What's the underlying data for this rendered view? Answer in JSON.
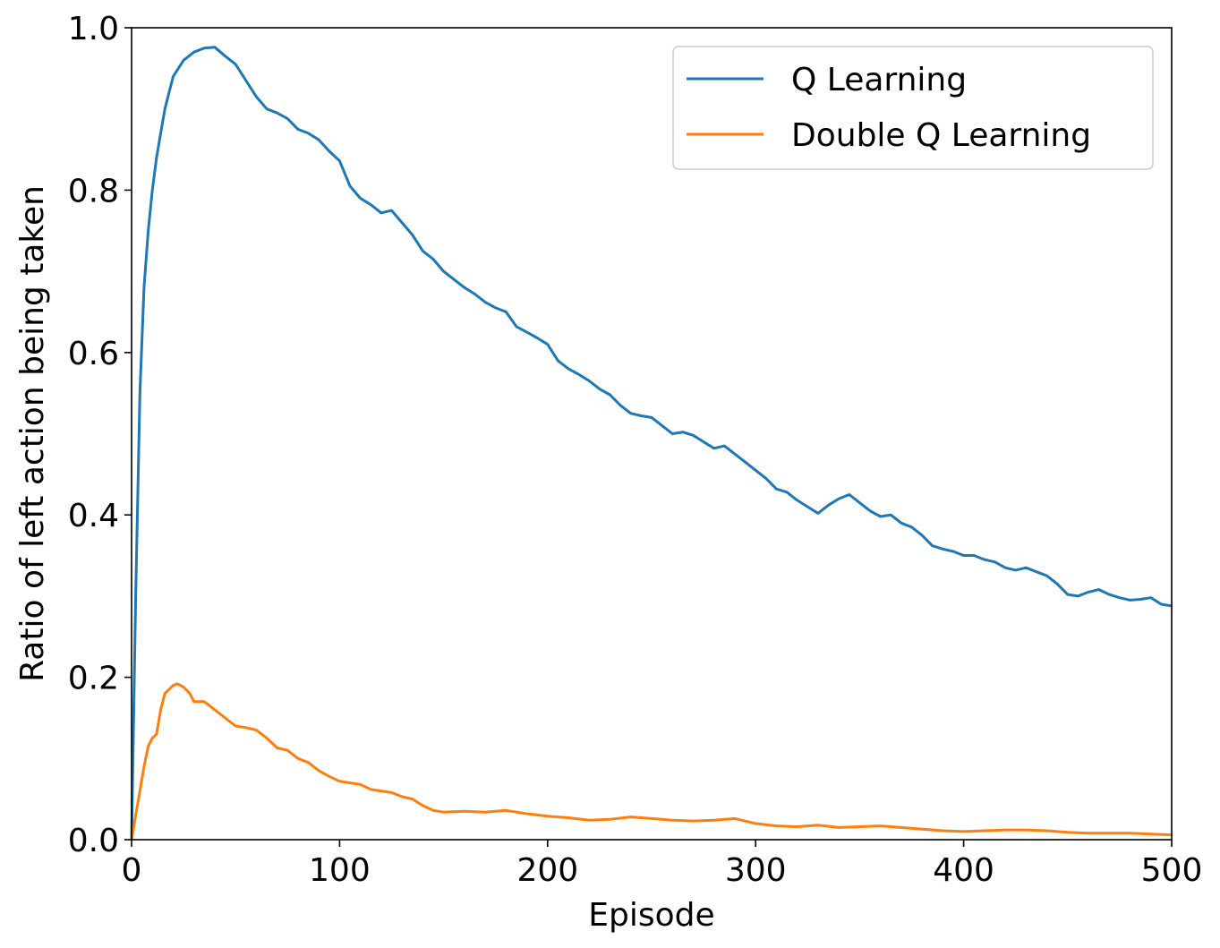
{
  "chart_data": {
    "type": "line",
    "title": "",
    "xlabel": "Episode",
    "ylabel": "Ratio of left action being taken",
    "xlim": [
      0,
      500
    ],
    "ylim": [
      0.0,
      1.0
    ],
    "xticks": [
      "0",
      "100",
      "200",
      "300",
      "400",
      "500"
    ],
    "yticks": [
      "0.0",
      "0.2",
      "0.4",
      "0.6",
      "0.8",
      "1.0"
    ],
    "grid": false,
    "legend_position": "top-right",
    "series": [
      {
        "name": "Q Learning",
        "color": "#1f77b4",
        "points": [
          [
            0,
            0.0
          ],
          [
            2,
            0.3
          ],
          [
            4,
            0.55
          ],
          [
            6,
            0.68
          ],
          [
            8,
            0.75
          ],
          [
            10,
            0.8
          ],
          [
            12,
            0.84
          ],
          [
            14,
            0.87
          ],
          [
            16,
            0.9
          ],
          [
            18,
            0.92
          ],
          [
            20,
            0.94
          ],
          [
            25,
            0.96
          ],
          [
            30,
            0.97
          ],
          [
            35,
            0.975
          ],
          [
            40,
            0.976
          ],
          [
            45,
            0.965
          ],
          [
            50,
            0.955
          ],
          [
            55,
            0.935
          ],
          [
            60,
            0.915
          ],
          [
            65,
            0.9
          ],
          [
            70,
            0.895
          ],
          [
            75,
            0.888
          ],
          [
            80,
            0.875
          ],
          [
            85,
            0.87
          ],
          [
            90,
            0.862
          ],
          [
            95,
            0.848
          ],
          [
            100,
            0.836
          ],
          [
            105,
            0.805
          ],
          [
            110,
            0.79
          ],
          [
            115,
            0.782
          ],
          [
            120,
            0.772
          ],
          [
            125,
            0.775
          ],
          [
            130,
            0.76
          ],
          [
            135,
            0.745
          ],
          [
            140,
            0.725
          ],
          [
            145,
            0.715
          ],
          [
            150,
            0.7
          ],
          [
            155,
            0.69
          ],
          [
            160,
            0.68
          ],
          [
            165,
            0.672
          ],
          [
            170,
            0.662
          ],
          [
            175,
            0.655
          ],
          [
            180,
            0.65
          ],
          [
            185,
            0.632
          ],
          [
            190,
            0.625
          ],
          [
            195,
            0.618
          ],
          [
            200,
            0.61
          ],
          [
            205,
            0.59
          ],
          [
            210,
            0.58
          ],
          [
            215,
            0.573
          ],
          [
            220,
            0.565
          ],
          [
            225,
            0.555
          ],
          [
            230,
            0.548
          ],
          [
            235,
            0.535
          ],
          [
            240,
            0.525
          ],
          [
            245,
            0.522
          ],
          [
            250,
            0.52
          ],
          [
            255,
            0.51
          ],
          [
            260,
            0.5
          ],
          [
            265,
            0.502
          ],
          [
            270,
            0.498
          ],
          [
            275,
            0.49
          ],
          [
            280,
            0.482
          ],
          [
            285,
            0.485
          ],
          [
            290,
            0.475
          ],
          [
            295,
            0.465
          ],
          [
            300,
            0.455
          ],
          [
            305,
            0.445
          ],
          [
            310,
            0.432
          ],
          [
            315,
            0.428
          ],
          [
            320,
            0.418
          ],
          [
            325,
            0.41
          ],
          [
            330,
            0.402
          ],
          [
            335,
            0.412
          ],
          [
            340,
            0.42
          ],
          [
            345,
            0.425
          ],
          [
            350,
            0.415
          ],
          [
            355,
            0.405
          ],
          [
            360,
            0.398
          ],
          [
            365,
            0.4
          ],
          [
            370,
            0.39
          ],
          [
            375,
            0.385
          ],
          [
            380,
            0.375
          ],
          [
            385,
            0.362
          ],
          [
            390,
            0.358
          ],
          [
            395,
            0.355
          ],
          [
            400,
            0.35
          ],
          [
            405,
            0.35
          ],
          [
            410,
            0.345
          ],
          [
            415,
            0.342
          ],
          [
            420,
            0.335
          ],
          [
            425,
            0.332
          ],
          [
            430,
            0.335
          ],
          [
            435,
            0.33
          ],
          [
            440,
            0.325
          ],
          [
            445,
            0.315
          ],
          [
            450,
            0.302
          ],
          [
            455,
            0.3
          ],
          [
            460,
            0.305
          ],
          [
            465,
            0.308
          ],
          [
            470,
            0.302
          ],
          [
            475,
            0.298
          ],
          [
            480,
            0.295
          ],
          [
            485,
            0.296
          ],
          [
            490,
            0.298
          ],
          [
            495,
            0.29
          ],
          [
            500,
            0.288
          ]
        ]
      },
      {
        "name": "Double Q Learning",
        "color": "#ff7f0e",
        "points": [
          [
            0,
            0.0
          ],
          [
            2,
            0.03
          ],
          [
            4,
            0.06
          ],
          [
            6,
            0.09
          ],
          [
            8,
            0.115
          ],
          [
            10,
            0.125
          ],
          [
            12,
            0.13
          ],
          [
            14,
            0.16
          ],
          [
            16,
            0.18
          ],
          [
            18,
            0.185
          ],
          [
            20,
            0.19
          ],
          [
            22,
            0.192
          ],
          [
            25,
            0.188
          ],
          [
            28,
            0.18
          ],
          [
            30,
            0.17
          ],
          [
            35,
            0.17
          ],
          [
            40,
            0.16
          ],
          [
            45,
            0.15
          ],
          [
            50,
            0.14
          ],
          [
            55,
            0.138
          ],
          [
            60,
            0.135
          ],
          [
            65,
            0.125
          ],
          [
            70,
            0.113
          ],
          [
            75,
            0.11
          ],
          [
            80,
            0.1
          ],
          [
            85,
            0.095
          ],
          [
            90,
            0.085
          ],
          [
            95,
            0.078
          ],
          [
            100,
            0.072
          ],
          [
            105,
            0.07
          ],
          [
            110,
            0.068
          ],
          [
            115,
            0.062
          ],
          [
            120,
            0.06
          ],
          [
            125,
            0.058
          ],
          [
            130,
            0.053
          ],
          [
            135,
            0.05
          ],
          [
            140,
            0.042
          ],
          [
            145,
            0.036
          ],
          [
            150,
            0.034
          ],
          [
            160,
            0.035
          ],
          [
            170,
            0.034
          ],
          [
            180,
            0.036
          ],
          [
            190,
            0.032
          ],
          [
            200,
            0.029
          ],
          [
            210,
            0.027
          ],
          [
            220,
            0.024
          ],
          [
            230,
            0.025
          ],
          [
            240,
            0.028
          ],
          [
            250,
            0.026
          ],
          [
            260,
            0.024
          ],
          [
            270,
            0.023
          ],
          [
            280,
            0.024
          ],
          [
            290,
            0.026
          ],
          [
            300,
            0.02
          ],
          [
            310,
            0.017
          ],
          [
            320,
            0.016
          ],
          [
            330,
            0.018
          ],
          [
            340,
            0.015
          ],
          [
            350,
            0.016
          ],
          [
            360,
            0.017
          ],
          [
            370,
            0.015
          ],
          [
            380,
            0.013
          ],
          [
            390,
            0.011
          ],
          [
            400,
            0.01
          ],
          [
            410,
            0.011
          ],
          [
            420,
            0.012
          ],
          [
            430,
            0.012
          ],
          [
            440,
            0.011
          ],
          [
            450,
            0.009
          ],
          [
            460,
            0.008
          ],
          [
            470,
            0.008
          ],
          [
            480,
            0.008
          ],
          [
            490,
            0.007
          ],
          [
            500,
            0.006
          ]
        ]
      }
    ]
  }
}
